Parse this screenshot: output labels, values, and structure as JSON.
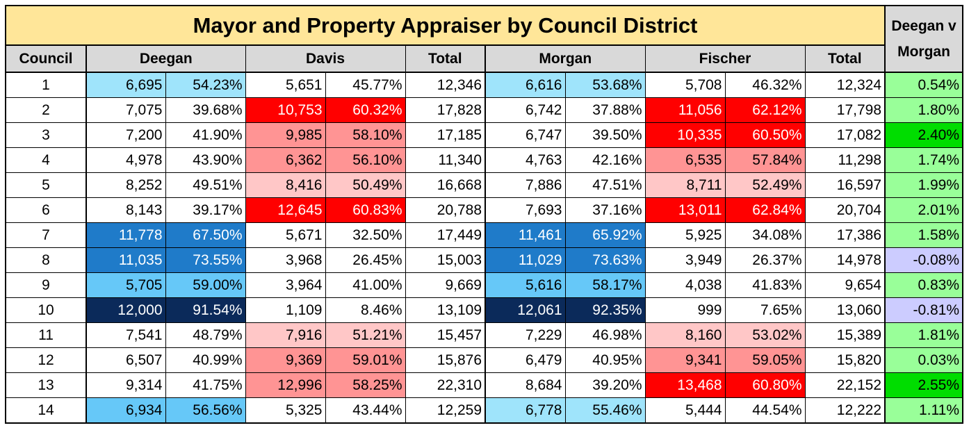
{
  "title": "Mayor and Property Appraiser by Council District",
  "headers": {
    "council": "Council",
    "deegan": "Deegan",
    "davis": "Davis",
    "total1": "Total",
    "morgan": "Morgan",
    "fischer": "Fischer",
    "total2": "Total",
    "dvm_line1": "Deegan v",
    "dvm_line2": "Morgan"
  },
  "colors": {
    "title_bg": "#ffe699",
    "header_bg": "#d9d9d9",
    "blue_light": "#9fe4fb",
    "blue_mid": "#66c8f8",
    "blue_strong": "#1f7bc9",
    "blue_dark": "#0b2a5a",
    "red_light": "#ffc7c7",
    "red_mid": "#ff9494",
    "red_strong": "#ff0000",
    "green_light": "#99ff99",
    "green_strong": "#00dd00",
    "lavender": "#ccccff"
  },
  "rows": [
    {
      "council": "1",
      "deegan_n": "6,695",
      "deegan_p": "54.23%",
      "davis_n": "5,651",
      "davis_p": "45.77%",
      "total1": "12,346",
      "morgan_n": "6,616",
      "morgan_p": "53.68%",
      "fischer_n": "5,708",
      "fischer_p": "46.32%",
      "total2": "12,324",
      "dvm": "0.54%"
    },
    {
      "council": "2",
      "deegan_n": "7,075",
      "deegan_p": "39.68%",
      "davis_n": "10,753",
      "davis_p": "60.32%",
      "total1": "17,828",
      "morgan_n": "6,742",
      "morgan_p": "37.88%",
      "fischer_n": "11,056",
      "fischer_p": "62.12%",
      "total2": "17,798",
      "dvm": "1.80%"
    },
    {
      "council": "3",
      "deegan_n": "7,200",
      "deegan_p": "41.90%",
      "davis_n": "9,985",
      "davis_p": "58.10%",
      "total1": "17,185",
      "morgan_n": "6,747",
      "morgan_p": "39.50%",
      "fischer_n": "10,335",
      "fischer_p": "60.50%",
      "total2": "17,082",
      "dvm": "2.40%"
    },
    {
      "council": "4",
      "deegan_n": "4,978",
      "deegan_p": "43.90%",
      "davis_n": "6,362",
      "davis_p": "56.10%",
      "total1": "11,340",
      "morgan_n": "4,763",
      "morgan_p": "42.16%",
      "fischer_n": "6,535",
      "fischer_p": "57.84%",
      "total2": "11,298",
      "dvm": "1.74%"
    },
    {
      "council": "5",
      "deegan_n": "8,252",
      "deegan_p": "49.51%",
      "davis_n": "8,416",
      "davis_p": "50.49%",
      "total1": "16,668",
      "morgan_n": "7,886",
      "morgan_p": "47.51%",
      "fischer_n": "8,711",
      "fischer_p": "52.49%",
      "total2": "16,597",
      "dvm": "1.99%"
    },
    {
      "council": "6",
      "deegan_n": "8,143",
      "deegan_p": "39.17%",
      "davis_n": "12,645",
      "davis_p": "60.83%",
      "total1": "20,788",
      "morgan_n": "7,693",
      "morgan_p": "37.16%",
      "fischer_n": "13,011",
      "fischer_p": "62.84%",
      "total2": "20,704",
      "dvm": "2.01%"
    },
    {
      "council": "7",
      "deegan_n": "11,778",
      "deegan_p": "67.50%",
      "davis_n": "5,671",
      "davis_p": "32.50%",
      "total1": "17,449",
      "morgan_n": "11,461",
      "morgan_p": "65.92%",
      "fischer_n": "5,925",
      "fischer_p": "34.08%",
      "total2": "17,386",
      "dvm": "1.58%"
    },
    {
      "council": "8",
      "deegan_n": "11,035",
      "deegan_p": "73.55%",
      "davis_n": "3,968",
      "davis_p": "26.45%",
      "total1": "15,003",
      "morgan_n": "11,029",
      "morgan_p": "73.63%",
      "fischer_n": "3,949",
      "fischer_p": "26.37%",
      "total2": "14,978",
      "dvm": "-0.08%"
    },
    {
      "council": "9",
      "deegan_n": "5,705",
      "deegan_p": "59.00%",
      "davis_n": "3,964",
      "davis_p": "41.00%",
      "total1": "9,669",
      "morgan_n": "5,616",
      "morgan_p": "58.17%",
      "fischer_n": "4,038",
      "fischer_p": "41.83%",
      "total2": "9,654",
      "dvm": "0.83%"
    },
    {
      "council": "10",
      "deegan_n": "12,000",
      "deegan_p": "91.54%",
      "davis_n": "1,109",
      "davis_p": "8.46%",
      "total1": "13,109",
      "morgan_n": "12,061",
      "morgan_p": "92.35%",
      "fischer_n": "999",
      "fischer_p": "7.65%",
      "total2": "13,060",
      "dvm": "-0.81%"
    },
    {
      "council": "11",
      "deegan_n": "7,541",
      "deegan_p": "48.79%",
      "davis_n": "7,916",
      "davis_p": "51.21%",
      "total1": "15,457",
      "morgan_n": "7,229",
      "morgan_p": "46.98%",
      "fischer_n": "8,160",
      "fischer_p": "53.02%",
      "total2": "15,389",
      "dvm": "1.81%"
    },
    {
      "council": "12",
      "deegan_n": "6,507",
      "deegan_p": "40.99%",
      "davis_n": "9,369",
      "davis_p": "59.01%",
      "total1": "15,876",
      "morgan_n": "6,479",
      "morgan_p": "40.95%",
      "fischer_n": "9,341",
      "fischer_p": "59.05%",
      "total2": "15,820",
      "dvm": "0.03%"
    },
    {
      "council": "13",
      "deegan_n": "9,314",
      "deegan_p": "41.75%",
      "davis_n": "12,996",
      "davis_p": "58.25%",
      "total1": "22,310",
      "morgan_n": "8,684",
      "morgan_p": "39.20%",
      "fischer_n": "13,468",
      "fischer_p": "60.80%",
      "total2": "22,152",
      "dvm": "2.55%"
    },
    {
      "council": "14",
      "deegan_n": "6,934",
      "deegan_p": "56.56%",
      "davis_n": "5,325",
      "davis_p": "43.44%",
      "total1": "12,259",
      "morgan_n": "6,778",
      "morgan_p": "55.46%",
      "fischer_n": "5,444",
      "fischer_p": "44.54%",
      "total2": "12,222",
      "dvm": "1.11%"
    }
  ]
}
